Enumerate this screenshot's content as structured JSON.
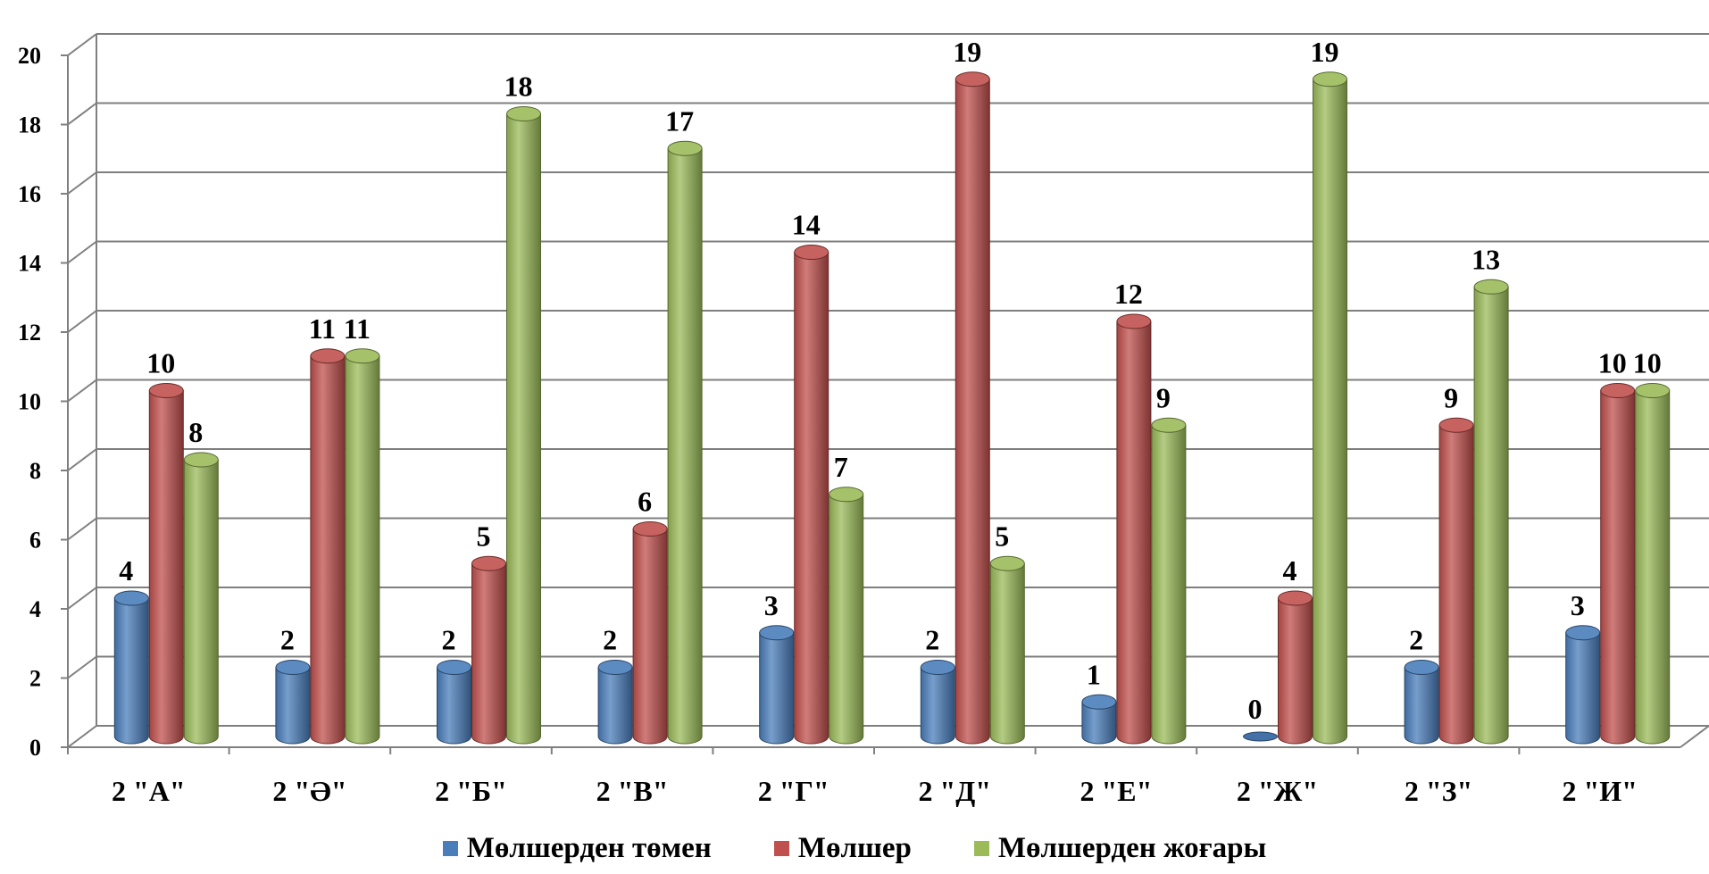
{
  "chart_data": {
    "type": "bar",
    "style": "3d-cylinder",
    "categories": [
      "2 \"А\"",
      "2 \"Ә\"",
      "2 \"Б\"",
      "2 \"В\"",
      "2 \"Г\"",
      "2 \"Д\"",
      "2 \"Е\"",
      "2 \"Ж\"",
      "2 \"З\"",
      "2 \"И\""
    ],
    "series": [
      {
        "name": "Мөлшерден төмен",
        "color": "#4a7ebb",
        "values": [
          4,
          2,
          2,
          2,
          3,
          2,
          1,
          0,
          2,
          3
        ]
      },
      {
        "name": "Мөлшер",
        "color": "#c0504d",
        "values": [
          10,
          11,
          5,
          6,
          14,
          19,
          12,
          4,
          9,
          10
        ]
      },
      {
        "name": "Мөлшерден жоғары",
        "color": "#9bbb59",
        "values": [
          8,
          11,
          18,
          17,
          7,
          5,
          9,
          19,
          13,
          10
        ]
      }
    ],
    "ylim": [
      0,
      20
    ],
    "yticks": [
      "0",
      "2",
      "4",
      "6",
      "8",
      "10",
      "12",
      "14",
      "16",
      "18",
      "20"
    ],
    "grid": true,
    "legend_position": "bottom",
    "data_labels": true
  }
}
